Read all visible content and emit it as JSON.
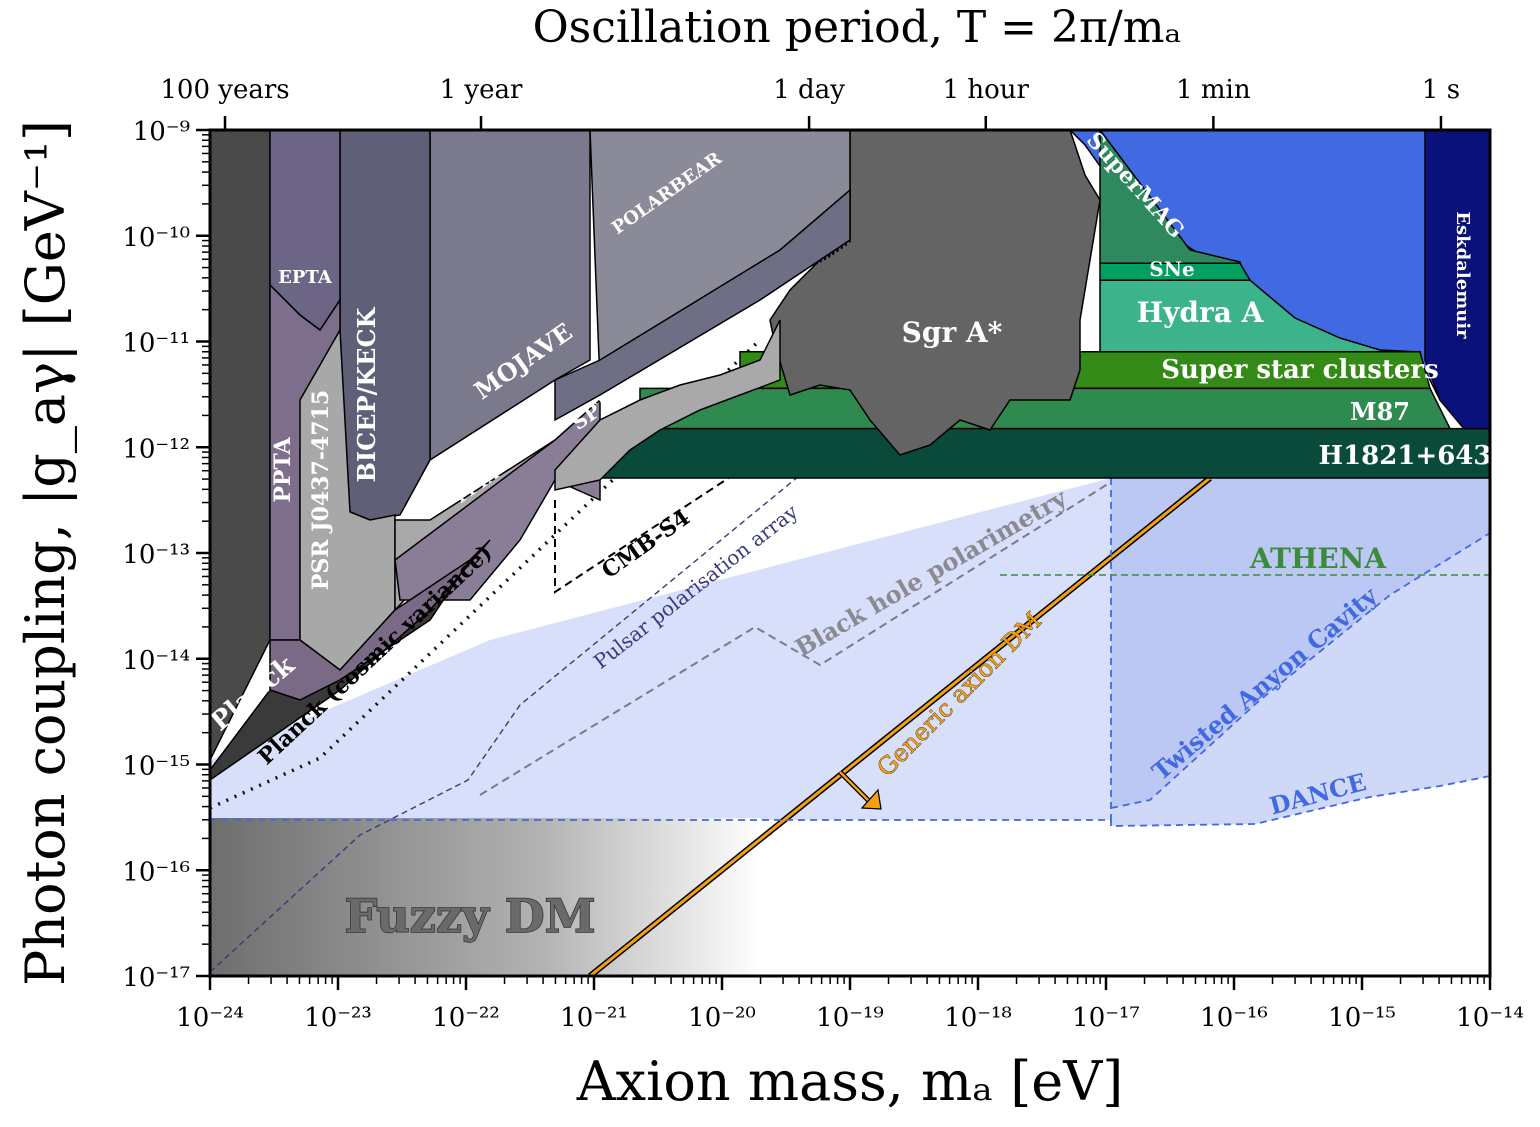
{
  "chart_data": {
    "type": "area",
    "title": "Oscillation period, T = 2π/mₐ",
    "xlabel": "Axion mass, mₐ [eV]",
    "ylabel": "Photon coupling, |g_aγ| [GeV⁻¹]",
    "xscale": "log",
    "yscale": "log",
    "xlim": [
      1e-24,
      1e-14
    ],
    "ylim": [
      1e-17,
      1e-09
    ],
    "x_ticks": [
      {
        "value": 1e-24,
        "label": "10⁻²⁴"
      },
      {
        "value": 1e-23,
        "label": "10⁻²³"
      },
      {
        "value": 1e-22,
        "label": "10⁻²²"
      },
      {
        "value": 1e-21,
        "label": "10⁻²¹"
      },
      {
        "value": 1e-20,
        "label": "10⁻²⁰"
      },
      {
        "value": 1e-19,
        "label": "10⁻¹⁹"
      },
      {
        "value": 1e-18,
        "label": "10⁻¹⁸"
      },
      {
        "value": 1e-17,
        "label": "10⁻¹⁷"
      },
      {
        "value": 1e-16,
        "label": "10⁻¹⁶"
      },
      {
        "value": 1e-15,
        "label": "10⁻¹⁵"
      },
      {
        "value": 1e-14,
        "label": "10⁻¹⁴"
      }
    ],
    "y_ticks": [
      {
        "value": 1e-09,
        "label": "10⁻⁹"
      },
      {
        "value": 1e-10,
        "label": "10⁻¹⁰"
      },
      {
        "value": 1e-11,
        "label": "10⁻¹¹"
      },
      {
        "value": 1e-12,
        "label": "10⁻¹²"
      },
      {
        "value": 1e-13,
        "label": "10⁻¹³"
      },
      {
        "value": 1e-14,
        "label": "10⁻¹⁴"
      },
      {
        "value": 1e-15,
        "label": "10⁻¹⁵"
      },
      {
        "value": 1e-16,
        "label": "10⁻¹⁶"
      },
      {
        "value": 1e-17,
        "label": "10⁻¹⁷"
      }
    ],
    "top_ticks": [
      {
        "mass": 1.31e-24,
        "label": "100 years"
      },
      {
        "mass": 1.31e-22,
        "label": "1 year"
      },
      {
        "mass": 4.79e-20,
        "label": "1 day"
      },
      {
        "mass": 1.15e-18,
        "label": "1 hour"
      },
      {
        "mass": 6.9e-17,
        "label": "1 min"
      },
      {
        "mass": 4.14e-15,
        "label": "1 s"
      }
    ],
    "colors": {
      "planck": "#4a4a4a",
      "pta": "#7d6e8c",
      "eptapta": "#6c6586",
      "psr": "#a8a8a8",
      "bicep": "#5f6078",
      "mojave": "#7a7a8c",
      "polarbear": "#8a8a98",
      "spt": "#a9a9a9",
      "sgra": "#646464",
      "supermag": "#4169e1",
      "eskdalemuir": "#0b117a",
      "sne": "#00a060",
      "hydra": "#3cb38a",
      "ssc": "#338a16",
      "m87": "#2e8a4e",
      "h1821": "#0a4a3a",
      "generic": "#f5a010",
      "athena": "#3c8a3c",
      "projection_blue": "#4169e1"
    },
    "regions": [
      {
        "name": "Planck",
        "label": "Planck",
        "g_limit": [
          [
            1e-24,
            1e-15
          ],
          [
            1.1e-23,
            1e-13
          ]
        ]
      },
      {
        "name": "PPTA",
        "label": "PPTA"
      },
      {
        "name": "EPTA",
        "label": "EPTA"
      },
      {
        "name": "PSR J0437-4715",
        "label": "PSR J0437-4715"
      },
      {
        "name": "BICEP/KECK",
        "label": "BICEP/KECK"
      },
      {
        "name": "MOJAVE",
        "label": "MOJAVE"
      },
      {
        "name": "POLARBEAR",
        "label": "POLARBEAR"
      },
      {
        "name": "SPT",
        "label": "SPT"
      },
      {
        "name": "Sgr A*",
        "label": "Sgr A*"
      },
      {
        "name": "SuperMAG",
        "label": "SuperMAG"
      },
      {
        "name": "Eskdalemuir",
        "label": "Eskdalemuir"
      },
      {
        "name": "SNe",
        "label": "SNe",
        "g_limit": 5.5e-11
      },
      {
        "name": "Hydra A",
        "label": "Hydra A",
        "g_limit": 3.8e-11
      },
      {
        "name": "Super star clusters",
        "label": "Super star clusters",
        "g_limit": 8e-12
      },
      {
        "name": "M87",
        "label": "M87",
        "g_limit": 3.6e-12
      },
      {
        "name": "H1821+643",
        "label": "H1821+643",
        "g_limit": 1.5e-12
      }
    ],
    "projections": [
      {
        "name": "CMB-S4",
        "label": "CMB-S4"
      },
      {
        "name": "Planck (cosmic variance)",
        "label": "Planck (cosmic variance)"
      },
      {
        "name": "Pulsar polarisation array",
        "label": "Pulsar polarisation array"
      },
      {
        "name": "Black hole polarimetry",
        "label": "Black hole polarimetry"
      },
      {
        "name": "ATHENA",
        "label": "ATHENA",
        "g_limit": 6.2e-14
      },
      {
        "name": "Twisted Anyon Cavity",
        "label": "Twisted Anyon Cavity"
      },
      {
        "name": "DANCE",
        "label": "DANCE"
      }
    ],
    "generic_axion_dm": {
      "label": "Generic axion DM"
    },
    "fuzzy_dm": {
      "label": "Fuzzy DM",
      "mass_max": 2e-20
    }
  }
}
